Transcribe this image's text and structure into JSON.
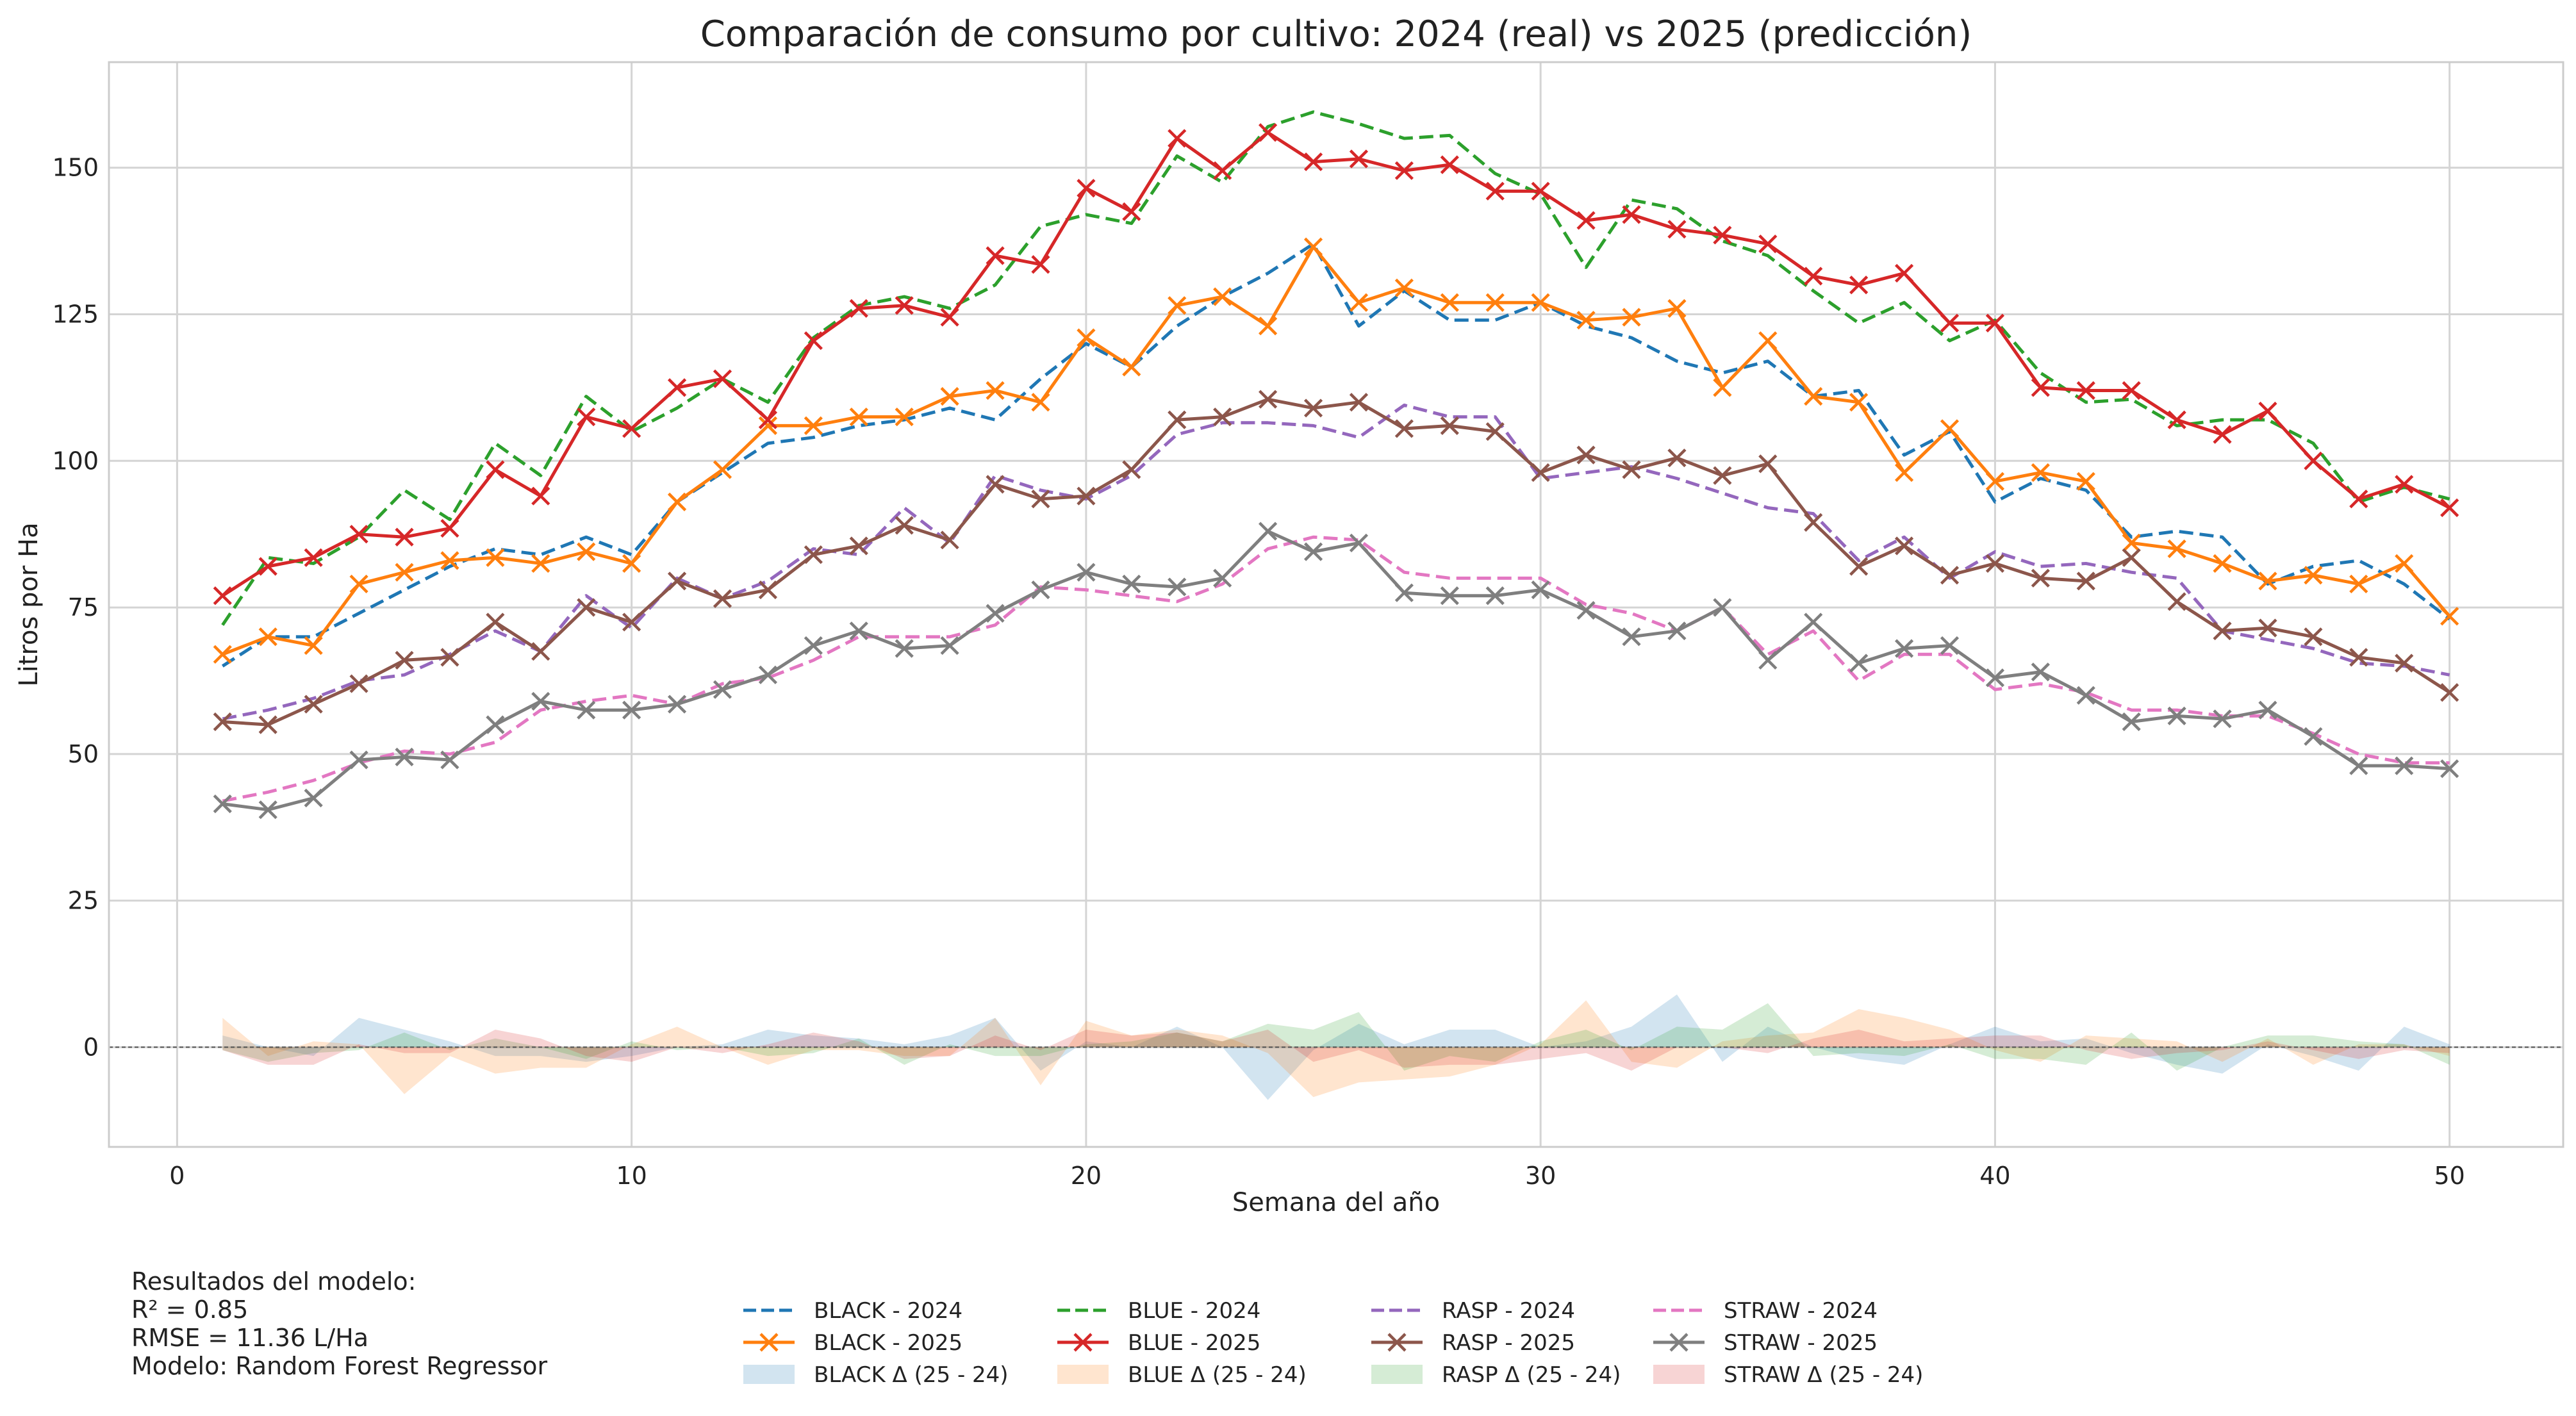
{
  "chart_data": {
    "type": "line",
    "title": "Comparación de consumo por cultivo: 2024 (real) vs 2025 (predicción)",
    "xlabel": "Semana del año",
    "ylabel": "Litros por Ha",
    "xlim": [
      -1.5,
      52.5
    ],
    "ylim": [
      -17,
      168
    ],
    "xticks": [
      0,
      10,
      20,
      30,
      40,
      50
    ],
    "yticks": [
      0,
      25,
      50,
      75,
      100,
      125,
      150
    ],
    "grid": true,
    "legend_position": "bottom",
    "x": [
      1,
      2,
      3,
      4,
      5,
      6,
      7,
      8,
      9,
      10,
      11,
      12,
      13,
      14,
      15,
      16,
      17,
      18,
      19,
      20,
      21,
      22,
      23,
      24,
      25,
      26,
      27,
      28,
      29,
      30,
      31,
      32,
      33,
      34,
      35,
      36,
      37,
      38,
      39,
      40,
      41,
      42,
      43,
      44,
      45,
      46,
      47,
      48,
      49,
      50
    ],
    "series": [
      {
        "name": "BLACK - 2024",
        "color": "#1f77b4",
        "style": "dashed",
        "marker": "none",
        "values": [
          65,
          70,
          70,
          74,
          78,
          82,
          85,
          84,
          87,
          84,
          93,
          98,
          103,
          104,
          106,
          107,
          109,
          107,
          114,
          120,
          116,
          123,
          128,
          132,
          137,
          123,
          129,
          124,
          124,
          127,
          123,
          121,
          117,
          115,
          117,
          111,
          112,
          101,
          105,
          93,
          97,
          95,
          87,
          88,
          87,
          79,
          82,
          83,
          79,
          73
        ]
      },
      {
        "name": "BLACK - 2025",
        "color": "#ff7f0e",
        "style": "solid",
        "marker": "x",
        "values": [
          67,
          70,
          68.5,
          79,
          81,
          83,
          83.5,
          82.5,
          84.5,
          82.5,
          93,
          98.5,
          106,
          106,
          107.5,
          107.5,
          111,
          112,
          110,
          121,
          116,
          126.5,
          128,
          123,
          136.5,
          127,
          129.5,
          127,
          127,
          127,
          124,
          124.5,
          126,
          112.5,
          120.5,
          111,
          110,
          98,
          105.5,
          96.5,
          98,
          96.5,
          86,
          85,
          82.5,
          79.5,
          80.5,
          79,
          82.5,
          73.5
        ]
      },
      {
        "name": "BLUE - 2024",
        "color": "#2ca02c",
        "style": "dashed",
        "marker": "none",
        "values": [
          72,
          83.5,
          82.5,
          87,
          95,
          90,
          103,
          97.5,
          111,
          105,
          109,
          114,
          110,
          121,
          126.5,
          128,
          126,
          130,
          140,
          142,
          140.5,
          152,
          147.5,
          157,
          159.5,
          157.5,
          155,
          155.5,
          149,
          145.5,
          133,
          144.5,
          143,
          137.5,
          135,
          129,
          123.5,
          127,
          120.5,
          124,
          115,
          110,
          110.5,
          106,
          107,
          107,
          103,
          93,
          95.5,
          93.5
        ]
      },
      {
        "name": "BLUE - 2025",
        "color": "#d62728",
        "style": "solid",
        "marker": "x",
        "values": [
          77,
          82,
          83.5,
          87.5,
          87,
          88.5,
          98.5,
          94,
          107.5,
          105.5,
          112.5,
          114,
          107,
          120.5,
          126,
          126.5,
          124.5,
          135,
          133.5,
          146.5,
          142.5,
          155,
          149.5,
          156,
          151,
          151.5,
          149.5,
          150.5,
          146,
          146,
          141,
          142,
          139.5,
          138.5,
          137,
          131.5,
          130,
          132,
          123.5,
          123.5,
          112.5,
          112,
          112,
          107,
          104.5,
          108.5,
          100,
          93.5,
          96,
          92
        ]
      },
      {
        "name": "RASP - 2024",
        "color": "#9467bd",
        "style": "dashed",
        "marker": "none",
        "values": [
          56,
          57.5,
          59.5,
          62.5,
          63.5,
          67,
          71,
          67.5,
          77,
          71.5,
          80,
          76.5,
          79.5,
          85,
          84,
          92,
          86,
          97.5,
          95,
          93.5,
          97.5,
          104.5,
          106.5,
          106.5,
          106,
          104,
          109.5,
          107.5,
          107.5,
          97,
          98,
          99,
          97,
          94.5,
          92,
          91,
          83,
          87,
          80,
          84.5,
          82,
          82.5,
          81,
          80,
          71,
          69.5,
          68,
          65.5,
          65,
          63.5
        ]
      },
      {
        "name": "RASP - 2025",
        "color": "#8c564b",
        "style": "solid",
        "marker": "x",
        "values": [
          55.5,
          55,
          58.5,
          62,
          66,
          66.5,
          72.5,
          67.5,
          75,
          72.5,
          79.5,
          76.5,
          78,
          84,
          85.5,
          89,
          86.5,
          96,
          93.5,
          94,
          98.5,
          107,
          107.5,
          110.5,
          109,
          110,
          105.5,
          106,
          105,
          98,
          101,
          98.5,
          100.5,
          97.5,
          99.5,
          89.5,
          82,
          85.5,
          80.5,
          82.5,
          80,
          79.5,
          83.5,
          76,
          71,
          71.5,
          70,
          66.5,
          65.5,
          60.5
        ]
      },
      {
        "name": "STRAW - 2024",
        "color": "#e377c2",
        "style": "dashed",
        "marker": "none",
        "values": [
          42,
          43.5,
          45.5,
          48.5,
          50.5,
          50,
          52,
          57.5,
          59,
          60,
          58.5,
          62,
          63,
          66,
          70,
          70,
          70,
          72,
          78.5,
          78,
          77,
          76,
          79,
          85,
          87,
          86.5,
          81,
          80,
          80,
          80,
          75.5,
          74,
          71,
          75,
          67,
          71,
          62.5,
          67,
          67,
          61,
          62,
          60.5,
          57.5,
          57.5,
          56.5,
          56.5,
          53.5,
          50,
          48.5,
          48.5
        ]
      },
      {
        "name": "STRAW - 2025",
        "color": "#7f7f7f",
        "style": "solid",
        "marker": "x",
        "values": [
          41.5,
          40.5,
          42.5,
          49,
          49.5,
          49,
          55,
          59,
          57.5,
          57.5,
          58.5,
          61,
          63.5,
          68.5,
          71,
          68,
          68.5,
          74,
          78,
          81,
          79,
          78.5,
          80,
          88,
          84.5,
          86,
          77.5,
          77,
          77,
          78,
          74.5,
          70,
          71,
          75,
          66,
          72.5,
          65.5,
          68,
          68.5,
          63,
          64,
          60,
          55.5,
          56.5,
          56,
          57.5,
          53,
          48,
          48,
          47.5
        ]
      }
    ],
    "delta_bands": [
      {
        "name": "BLACK Δ (25 - 24)",
        "color": "#1f77b4",
        "opacity": 0.2,
        "base": "BLACK - 2024",
        "pred": "BLACK - 2025"
      },
      {
        "name": "BLUE Δ (25 - 24)",
        "color": "#ff7f0e",
        "opacity": 0.2,
        "base": "BLUE - 2024",
        "pred": "BLUE - 2025"
      },
      {
        "name": "RASP Δ (25 - 24)",
        "color": "#2ca02c",
        "opacity": 0.2,
        "base": "RASP - 2024",
        "pred": "RASP - 2025"
      },
      {
        "name": "STRAW Δ (25 - 24)",
        "color": "#d62728",
        "opacity": 0.2,
        "base": "STRAW - 2024",
        "pred": "STRAW - 2025"
      }
    ],
    "legend_columns": [
      [
        "BLACK - 2024",
        "BLACK - 2025",
        "BLACK Δ (25 - 24)"
      ],
      [
        "BLUE - 2024",
        "BLUE - 2025",
        "BLUE Δ (25 - 24)"
      ],
      [
        "RASP - 2024",
        "RASP - 2025",
        "RASP Δ (25 - 24)"
      ],
      [
        "STRAW - 2024",
        "STRAW - 2025",
        "STRAW Δ (25 - 24)"
      ]
    ]
  },
  "model_results": {
    "heading": "Resultados del modelo:",
    "r2": "R² = 0.85",
    "rmse": "RMSE = 11.36 L/Ha",
    "model": "Modelo: Random Forest Regressor"
  }
}
